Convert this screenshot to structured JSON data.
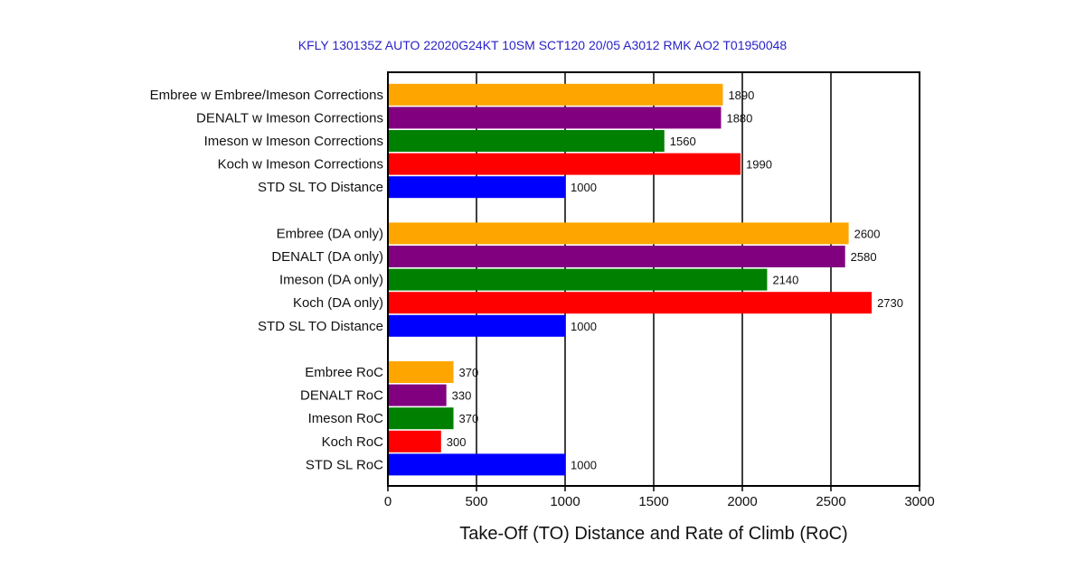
{
  "subtitle": "KFLY 130135Z AUTO 22020G24KT 10SM SCT120 20/05 A3012 RMK AO2 T01950048",
  "chart_data": {
    "type": "bar",
    "orientation": "horizontal",
    "title": "",
    "subtitle": "KFLY 130135Z AUTO 22020G24KT 10SM SCT120 20/05 A3012 RMK AO2 T01950048",
    "xlabel": "Take-Off (TO) Distance and Rate of Climb (RoC)",
    "ylabel": "",
    "xlim": [
      0,
      3000
    ],
    "xticks": [
      0,
      500,
      1000,
      1500,
      2000,
      2500,
      3000
    ],
    "grid": "vertical",
    "legend": "none",
    "groups": [
      {
        "bars": [
          {
            "label": "Embree w Embree/Imeson Corrections",
            "value": 1890,
            "color": "#FFA500"
          },
          {
            "label": "DENALT w Imeson Corrections",
            "value": 1880,
            "color": "#800080"
          },
          {
            "label": "Imeson w Imeson Corrections",
            "value": 1560,
            "color": "#008000"
          },
          {
            "label": "Koch w Imeson Corrections",
            "value": 1990,
            "color": "#FF0000"
          },
          {
            "label": "STD SL TO Distance",
            "value": 1000,
            "color": "#0000FF"
          }
        ]
      },
      {
        "bars": [
          {
            "label": "Embree (DA only)",
            "value": 2600,
            "color": "#FFA500"
          },
          {
            "label": "DENALT (DA only)",
            "value": 2580,
            "color": "#800080"
          },
          {
            "label": "Imeson (DA only)",
            "value": 2140,
            "color": "#008000"
          },
          {
            "label": "Koch (DA only)",
            "value": 2730,
            "color": "#FF0000"
          },
          {
            "label": "STD SL TO Distance",
            "value": 1000,
            "color": "#0000FF"
          }
        ]
      },
      {
        "bars": [
          {
            "label": "Embree RoC",
            "value": 370,
            "color": "#FFA500"
          },
          {
            "label": "DENALT RoC",
            "value": 330,
            "color": "#800080"
          },
          {
            "label": "Imeson RoC",
            "value": 370,
            "color": "#008000"
          },
          {
            "label": "Koch RoC",
            "value": 300,
            "color": "#FF0000"
          },
          {
            "label": "STD SL RoC",
            "value": 1000,
            "color": "#0000FF"
          }
        ]
      }
    ]
  }
}
